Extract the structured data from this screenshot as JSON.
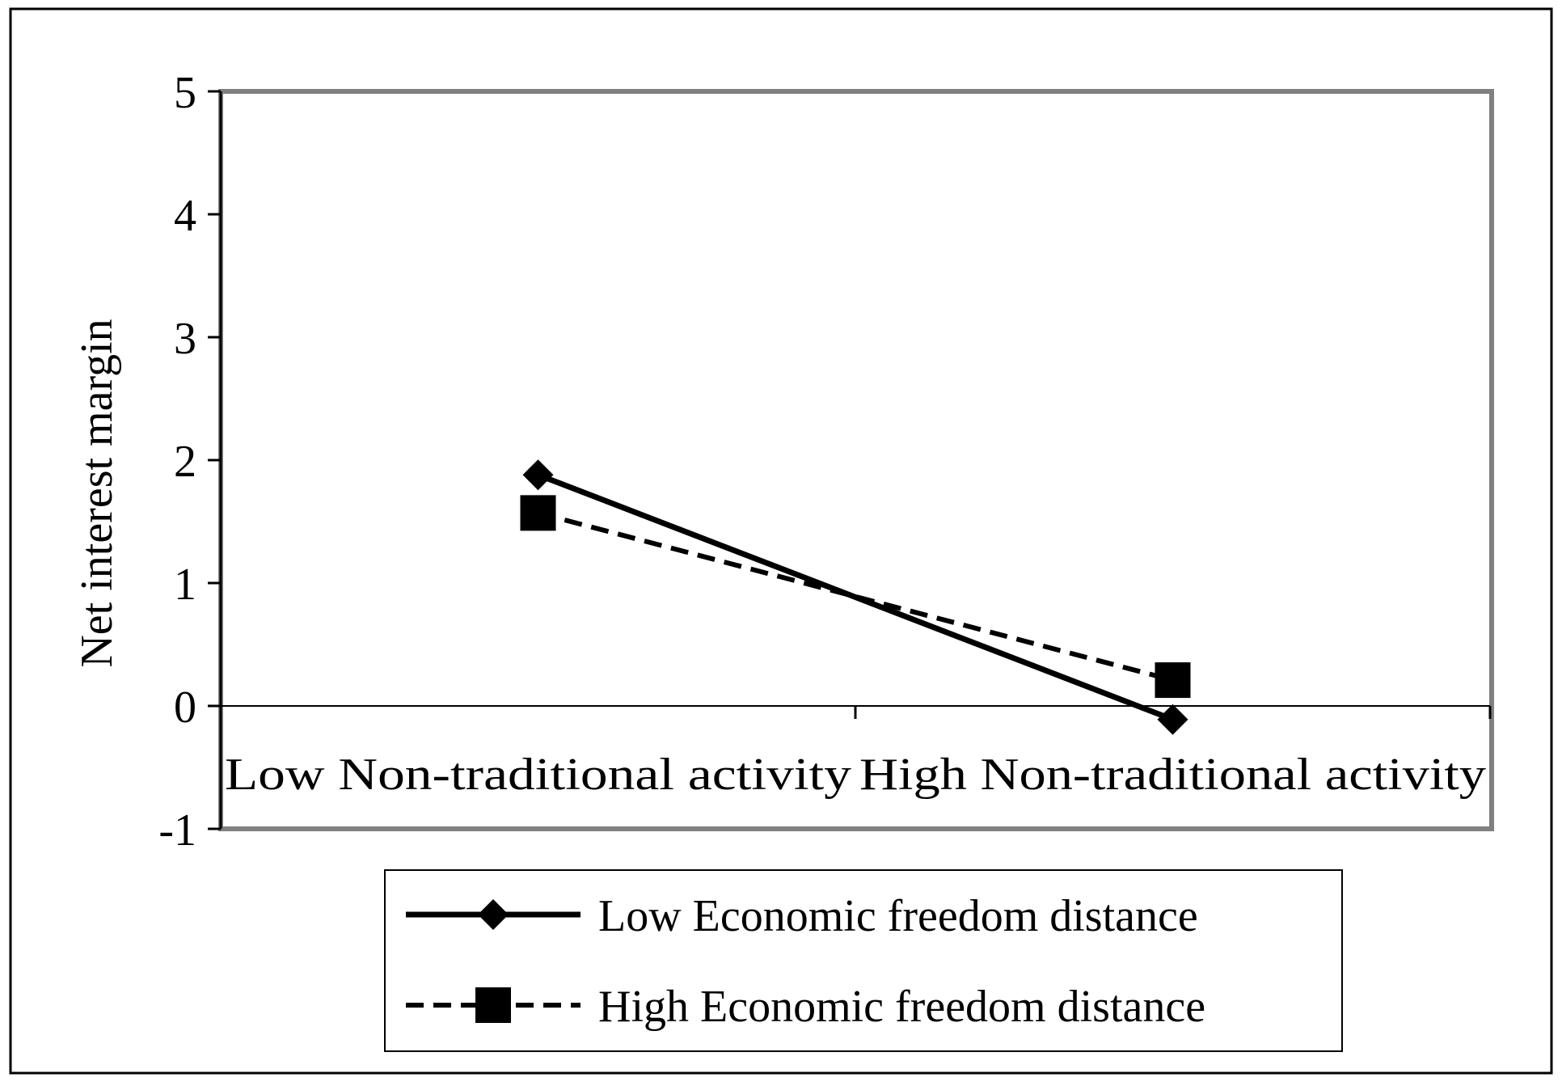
{
  "chart_data": {
    "type": "line",
    "title": "",
    "xlabel": "",
    "ylabel": "Net interest margin",
    "ylim": [
      -1,
      5
    ],
    "yticks": [
      "5",
      "4",
      "3",
      "2",
      "1",
      "0",
      "-1"
    ],
    "categories": [
      "Low Non-traditional activity",
      "High Non-traditional activity"
    ],
    "series": [
      {
        "name": "Low Economic freedom distance",
        "values": [
          1.88,
          -0.11
        ],
        "marker": "diamond",
        "line": "solid"
      },
      {
        "name": "High Economic freedom distance",
        "values": [
          1.57,
          0.21
        ],
        "marker": "square",
        "line": "dashed"
      }
    ],
    "grid": false,
    "legend_position": "bottom",
    "colors": {
      "lines": "#000000",
      "plot_frame": "#808080"
    }
  }
}
